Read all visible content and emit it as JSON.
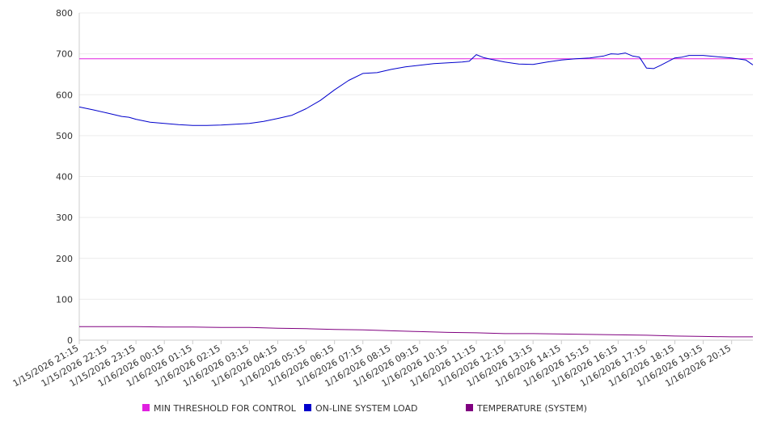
{
  "chart_data": {
    "type": "line",
    "title": "",
    "xlabel": "",
    "ylabel": "",
    "ylim": [
      0,
      800
    ],
    "yticks": [
      0,
      100,
      200,
      300,
      400,
      500,
      600,
      700,
      800
    ],
    "grid": "horizontal",
    "legend_position": "bottom",
    "x_tick_labels": [
      "1/15/2026 21:15",
      "1/15/2026 22:15",
      "1/15/2026 23:15",
      "1/16/2026 00:15",
      "1/16/2026 01:15",
      "1/16/2026 02:15",
      "1/16/2026 03:15",
      "1/16/2026 04:15",
      "1/16/2026 05:15",
      "1/16/2026 06:15",
      "1/16/2026 07:15",
      "1/16/2026 08:15",
      "1/16/2026 09:15",
      "1/16/2026 10:15",
      "1/16/2026 11:15",
      "1/16/2026 12:15",
      "1/16/2026 13:15",
      "1/16/2026 14:15",
      "1/16/2026 15:15",
      "1/16/2026 16:15",
      "1/16/2026 17:15",
      "1/16/2026 18:15",
      "1/16/2026 19:15",
      "1/16/2026 20:15"
    ],
    "x_hours": [
      0,
      1,
      2,
      3,
      4,
      5,
      6,
      7,
      8,
      9,
      10,
      11,
      12,
      13,
      14,
      15,
      16,
      17,
      18,
      19,
      20,
      21,
      22,
      23
    ],
    "x_max": 23.75,
    "series": [
      {
        "name": "MIN THRESHOLD FOR CONTROL",
        "color": "#e020e0",
        "x": [
          0,
          23.75
        ],
        "values": [
          688,
          688
        ]
      },
      {
        "name": "ON-LINE SYSTEM LOAD",
        "color": "#0000cc",
        "x": [
          0,
          0.5,
          1,
          1.5,
          1.75,
          2,
          2.5,
          3,
          3.5,
          4,
          4.5,
          5,
          5.5,
          6,
          6.5,
          7,
          7.5,
          8,
          8.5,
          9,
          9.5,
          10,
          10.5,
          11,
          11.5,
          12,
          12.5,
          13,
          13.5,
          13.75,
          14,
          14.25,
          14.5,
          15,
          15.5,
          16,
          16.5,
          17,
          17.5,
          18,
          18.5,
          18.75,
          19,
          19.25,
          19.5,
          19.75,
          20,
          20.25,
          20.5,
          21,
          21.25,
          21.5,
          22,
          22.5,
          23,
          23.5,
          23.75
        ],
        "values": [
          570,
          563,
          555,
          547,
          545,
          540,
          533,
          530,
          527,
          525,
          525,
          526,
          528,
          530,
          535,
          542,
          550,
          566,
          586,
          612,
          635,
          652,
          654,
          662,
          668,
          672,
          676,
          678,
          680,
          682,
          698,
          691,
          687,
          680,
          675,
          674,
          680,
          685,
          688,
          690,
          695,
          700,
          699,
          702,
          695,
          692,
          665,
          664,
          672,
          690,
          692,
          696,
          696,
          693,
          690,
          685,
          673
        ]
      },
      {
        "name": "TEMPERATURE (SYSTEM)",
        "color": "#800080",
        "x": [
          0,
          1,
          2,
          3,
          4,
          5,
          6,
          7,
          8,
          9,
          10,
          11,
          12,
          13,
          14,
          15,
          16,
          17,
          18,
          19,
          20,
          21,
          22,
          23,
          23.75
        ],
        "values": [
          33,
          33,
          33,
          32,
          32,
          31,
          31,
          29,
          28,
          26,
          25,
          23,
          21,
          19,
          18,
          16,
          16,
          15,
          14,
          13,
          12,
          10,
          9,
          8,
          8
        ]
      }
    ]
  }
}
